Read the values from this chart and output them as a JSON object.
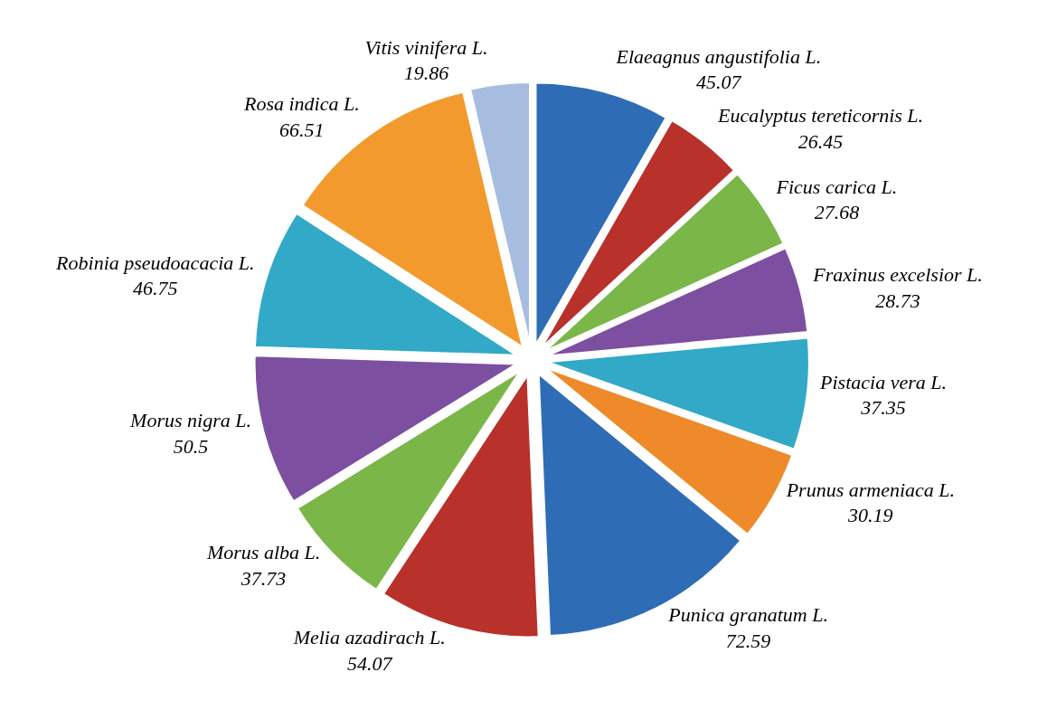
{
  "chart_data": {
    "type": "pie",
    "categories": [
      "Elaeagnus angustifolia L.",
      "Eucalyptus tereticornis L.",
      "Ficus carica L.",
      "Fraxinus excelsior L.",
      "Pistacia vera L.",
      "Prunus armeniaca L.",
      "Punica granatum L.",
      "Melia azadirach L.",
      "Morus alba L.",
      "Morus nigra L.",
      "Robinia pseudoacacia L.",
      "Rosa indica L.",
      "Vitis vinifera L."
    ],
    "values": [
      45.07,
      26.45,
      27.68,
      28.73,
      37.35,
      30.19,
      72.59,
      54.07,
      37.73,
      50.5,
      46.75,
      66.51,
      19.86
    ],
    "colors": [
      "#2e6db5",
      "#b8312a",
      "#7ab648",
      "#7d4fa0",
      "#31a9c7",
      "#ee8a2a",
      "#2e6db5",
      "#b8312a",
      "#7ab648",
      "#7d4fa0",
      "#31a9c7",
      "#f39a2e",
      "#a6bde0"
    ],
    "data_labels": true
  }
}
